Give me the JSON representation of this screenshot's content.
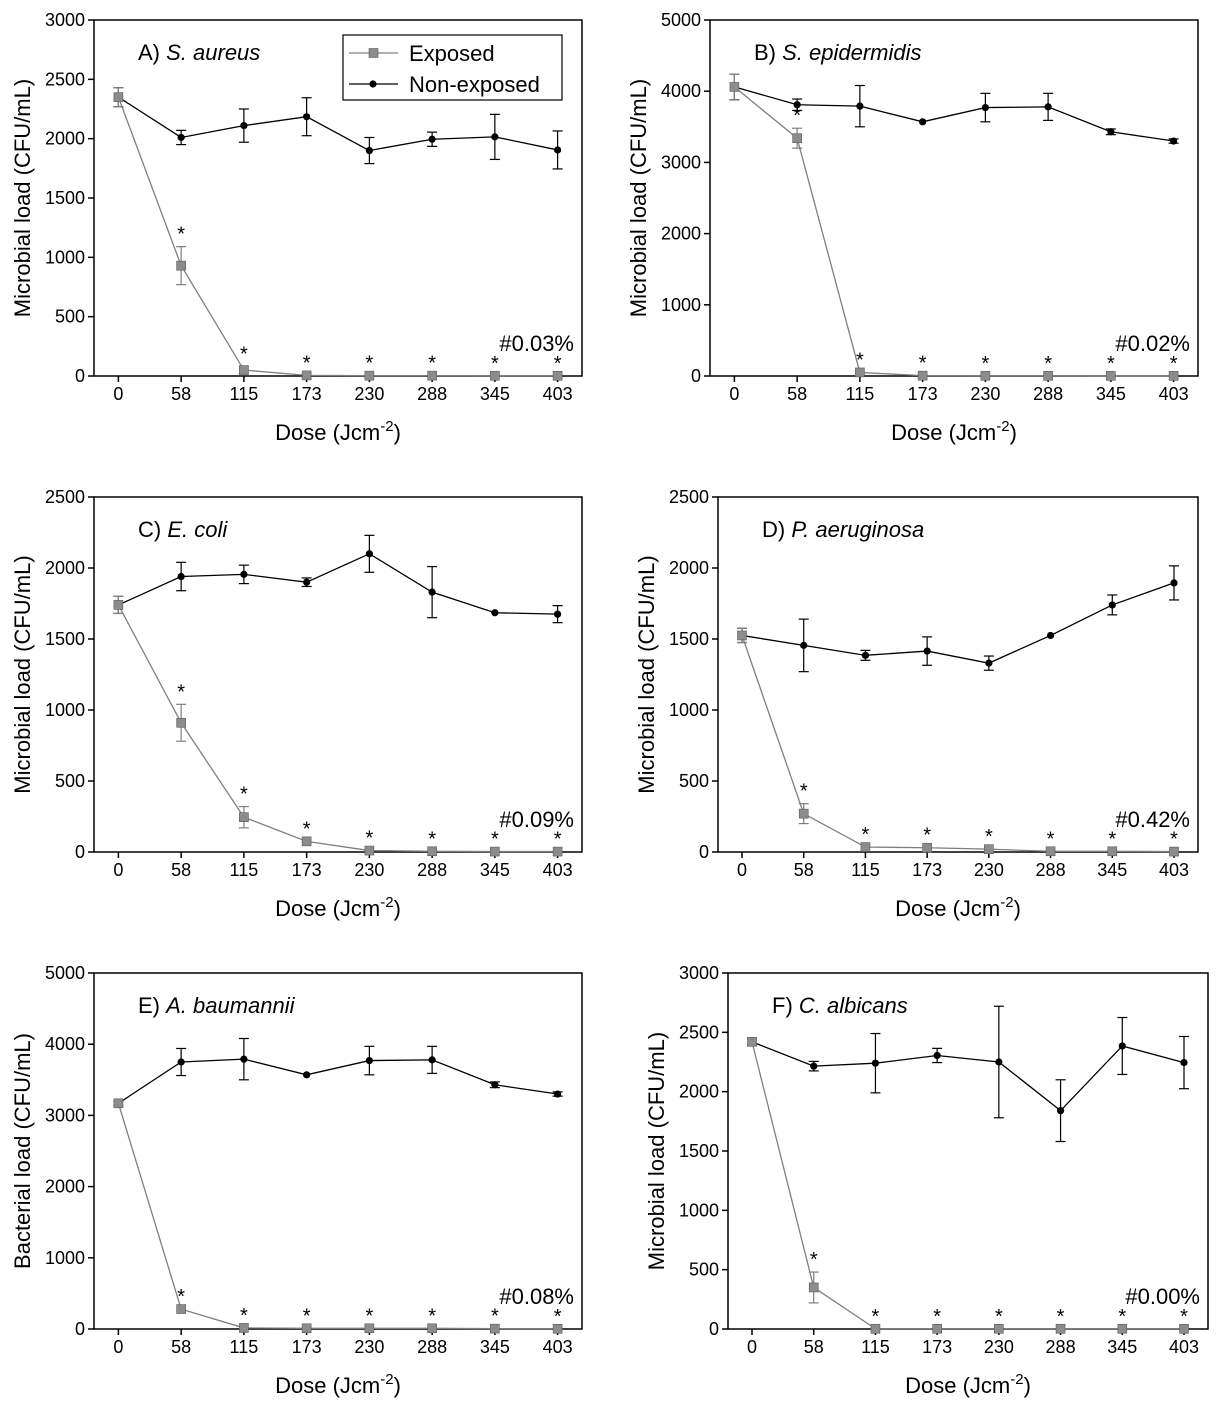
{
  "chart_data": [
    {
      "type": "line",
      "panel_label": "A)",
      "organism": "S. aureus",
      "xlabel": "Dose (Jcm",
      "xlabel_sup": "-2",
      "xlabel_end": ")",
      "ylabel": "Microbial load (CFU/mL)",
      "categories": [
        "0",
        "58",
        "115",
        "173",
        "230",
        "288",
        "345",
        "403"
      ],
      "ylim": [
        0,
        3000
      ],
      "yticks": [
        0,
        500,
        1000,
        1500,
        2000,
        2500,
        3000
      ],
      "note": "#0.03%",
      "series": [
        {
          "name": "Exposed",
          "values": [
            2350,
            930,
            50,
            5,
            3,
            3,
            2,
            2
          ],
          "errors": [
            80,
            160,
            30,
            0,
            0,
            0,
            0,
            0
          ],
          "marker": "square",
          "color": "#808080"
        },
        {
          "name": "Non-exposed",
          "values": [
            2350,
            2010,
            2110,
            2185,
            1900,
            1995,
            2015,
            1905
          ],
          "errors": [
            80,
            60,
            140,
            160,
            110,
            60,
            190,
            160
          ],
          "marker": "circle",
          "color": "#000000"
        }
      ],
      "significance": [
        "",
        "*",
        "*",
        "*",
        "*",
        "*",
        "*",
        "*"
      ],
      "legend": {
        "placement": "top-right",
        "entries": [
          "Exposed",
          "Non-exposed"
        ]
      }
    },
    {
      "type": "line",
      "panel_label": "B)",
      "organism": "S. epidermidis",
      "xlabel": "Dose (Jcm",
      "xlabel_sup": "-2",
      "xlabel_end": ")",
      "ylabel": "Microbial load (CFU/mL)",
      "categories": [
        "0",
        "58",
        "115",
        "173",
        "230",
        "288",
        "345",
        "403"
      ],
      "ylim": [
        0,
        5000
      ],
      "yticks": [
        0,
        1000,
        2000,
        3000,
        4000,
        5000
      ],
      "note": "#0.02%",
      "series": [
        {
          "name": "Exposed",
          "values": [
            4060,
            3340,
            50,
            5,
            3,
            3,
            2,
            2
          ],
          "errors": [
            180,
            140,
            0,
            0,
            0,
            0,
            0,
            0
          ],
          "marker": "square",
          "color": "#808080"
        },
        {
          "name": "Non-exposed",
          "values": [
            4060,
            3810,
            3790,
            3570,
            3770,
            3780,
            3430,
            3300
          ],
          "errors": [
            180,
            80,
            290,
            0,
            200,
            190,
            40,
            30
          ],
          "marker": "circle",
          "color": "#000000"
        }
      ],
      "significance": [
        "",
        "*",
        "*",
        "*",
        "*",
        "*",
        "*",
        "*"
      ]
    },
    {
      "type": "line",
      "panel_label": "C)",
      "organism": "E. coli",
      "xlabel": "Dose (Jcm",
      "xlabel_sup": "-2",
      "xlabel_end": ")",
      "ylabel": "Microbial load (CFU/mL)",
      "categories": [
        "0",
        "58",
        "115",
        "173",
        "230",
        "288",
        "345",
        "403"
      ],
      "ylim": [
        0,
        2500
      ],
      "yticks": [
        0,
        500,
        1000,
        1500,
        2000,
        2500
      ],
      "note": "#0.09%",
      "series": [
        {
          "name": "Exposed",
          "values": [
            1740,
            910,
            245,
            75,
            10,
            5,
            3,
            3
          ],
          "errors": [
            60,
            130,
            75,
            0,
            0,
            0,
            0,
            0
          ],
          "marker": "square",
          "color": "#808080"
        },
        {
          "name": "Non-exposed",
          "values": [
            1740,
            1940,
            1955,
            1900,
            2100,
            1830,
            1685,
            1675
          ],
          "errors": [
            60,
            100,
            65,
            30,
            130,
            180,
            0,
            60
          ],
          "marker": "circle",
          "color": "#000000"
        }
      ],
      "significance": [
        "",
        "*",
        "*",
        "*",
        "*",
        "*",
        "*",
        "*"
      ]
    },
    {
      "type": "line",
      "panel_label": "D)",
      "organism": "P. aeruginosa",
      "xlabel": "Dose (Jcm",
      "xlabel_sup": "-2",
      "xlabel_end": ")",
      "ylabel": "Microbial load (CFU/mL)",
      "categories": [
        "0",
        "58",
        "115",
        "173",
        "230",
        "288",
        "345",
        "403"
      ],
      "ylim": [
        0,
        2500
      ],
      "yticks": [
        0,
        500,
        1000,
        1500,
        2000,
        2500
      ],
      "note": "#0.42%",
      "series": [
        {
          "name": "Exposed",
          "values": [
            1525,
            270,
            35,
            30,
            20,
            5,
            5,
            3
          ],
          "errors": [
            50,
            70,
            0,
            0,
            0,
            0,
            0,
            0
          ],
          "marker": "square",
          "color": "#808080"
        },
        {
          "name": "Non-exposed",
          "values": [
            1525,
            1455,
            1385,
            1415,
            1330,
            1525,
            1740,
            1895
          ],
          "errors": [
            50,
            185,
            35,
            100,
            50,
            0,
            70,
            120
          ],
          "marker": "circle",
          "color": "#000000"
        }
      ],
      "significance": [
        "",
        "*",
        "*",
        "*",
        "*",
        "*",
        "*",
        "*"
      ]
    },
    {
      "type": "line",
      "panel_label": "E)",
      "organism": "A. baumannii",
      "xlabel": "Dose (Jcm",
      "xlabel_sup": "-2",
      "xlabel_end": ")",
      "ylabel": "Bacterial load (CFU/mL)",
      "categories": [
        "0",
        "58",
        "115",
        "173",
        "230",
        "288",
        "345",
        "403"
      ],
      "ylim": [
        0,
        5000
      ],
      "yticks": [
        0,
        1000,
        2000,
        3000,
        4000,
        5000
      ],
      "note": "#0.08%",
      "series": [
        {
          "name": "Exposed",
          "values": [
            3170,
            280,
            15,
            10,
            10,
            10,
            5,
            3
          ],
          "errors": [
            30,
            0,
            0,
            0,
            0,
            0,
            0,
            0
          ],
          "marker": "square",
          "color": "#808080"
        },
        {
          "name": "Non-exposed",
          "values": [
            3170,
            3750,
            3790,
            3570,
            3770,
            3780,
            3430,
            3300
          ],
          "errors": [
            30,
            190,
            290,
            0,
            200,
            190,
            40,
            30
          ],
          "marker": "circle",
          "color": "#000000"
        }
      ],
      "significance": [
        "",
        "*",
        "*",
        "*",
        "*",
        "*",
        "*",
        "*"
      ]
    },
    {
      "type": "line",
      "panel_label": "F)",
      "organism": "C. albicans",
      "xlabel": "Dose (Jcm",
      "xlabel_sup": "-2",
      "xlabel_end": ")",
      "ylabel": "Microbial load (CFU/mL)",
      "categories": [
        "0",
        "58",
        "115",
        "173",
        "230",
        "288",
        "345",
        "403"
      ],
      "ylim": [
        0,
        3000
      ],
      "yticks": [
        0,
        500,
        1000,
        1500,
        2000,
        2500,
        3000
      ],
      "note": "#0.00%",
      "series": [
        {
          "name": "Exposed",
          "values": [
            2420,
            350,
            2,
            2,
            2,
            2,
            2,
            2
          ],
          "errors": [
            30,
            130,
            0,
            0,
            0,
            0,
            0,
            0
          ],
          "marker": "square",
          "color": "#808080"
        },
        {
          "name": "Non-exposed",
          "values": [
            2420,
            2215,
            2240,
            2305,
            2250,
            1840,
            2385,
            2245
          ],
          "errors": [
            30,
            40,
            250,
            60,
            470,
            260,
            240,
            220
          ],
          "marker": "circle",
          "color": "#000000"
        }
      ],
      "significance": [
        "",
        "*",
        "*",
        "*",
        "*",
        "*",
        "*",
        "*"
      ]
    }
  ]
}
